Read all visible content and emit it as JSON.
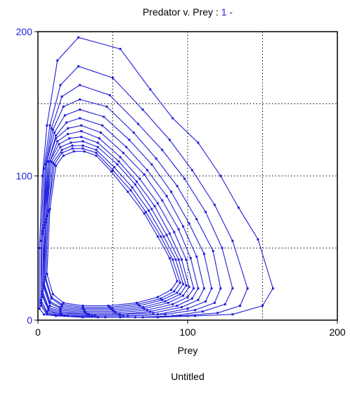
{
  "chart_data": {
    "type": "line",
    "title_prefix": "Predator v. Prey : ",
    "title_run": "1 -",
    "xlabel": "Prey",
    "ylabel": "",
    "footer": "Untitled",
    "xlim": [
      0,
      200
    ],
    "ylim": [
      0,
      200
    ],
    "x_ticks": [
      0,
      100,
      200
    ],
    "y_ticks": [
      0,
      100,
      200
    ],
    "grid_x": [
      50,
      100,
      150
    ],
    "grid_y": [
      50,
      100,
      150
    ],
    "grid": true,
    "legend": "none",
    "colors": {
      "series": "#1f1fdb",
      "y_ticks": "#1f1fdb",
      "title_run": "#1f1fdb",
      "grid": "#000000"
    },
    "series": [
      {
        "points": [
          [
            1,
            8
          ],
          [
            1,
            50
          ],
          [
            3,
            100
          ],
          [
            6,
            135
          ],
          [
            13,
            180
          ],
          [
            27,
            196
          ],
          [
            55,
            188
          ],
          [
            75,
            160
          ],
          [
            90,
            140
          ],
          [
            107,
            123
          ],
          [
            122,
            100
          ],
          [
            134,
            78
          ],
          [
            147,
            56
          ],
          [
            157,
            22
          ],
          [
            150,
            10
          ],
          [
            130,
            4
          ],
          [
            105,
            3
          ],
          [
            80,
            2
          ],
          [
            55,
            2
          ],
          [
            30,
            2
          ],
          [
            12,
            3
          ],
          [
            4,
            4
          ],
          [
            1,
            8
          ]
        ]
      },
      {
        "points": [
          [
            2,
            10
          ],
          [
            2,
            55
          ],
          [
            4,
            105
          ],
          [
            8,
            135
          ],
          [
            15,
            163
          ],
          [
            27,
            176
          ],
          [
            50,
            168
          ],
          [
            70,
            146
          ],
          [
            88,
            125
          ],
          [
            103,
            104
          ],
          [
            118,
            80
          ],
          [
            130,
            55
          ],
          [
            140,
            22
          ],
          [
            135,
            10
          ],
          [
            120,
            5
          ],
          [
            95,
            3
          ],
          [
            70,
            2
          ],
          [
            45,
            2
          ],
          [
            20,
            3
          ],
          [
            6,
            4
          ],
          [
            2,
            10
          ]
        ]
      },
      {
        "points": [
          [
            2,
            12
          ],
          [
            3,
            60
          ],
          [
            5,
            108
          ],
          [
            9,
            133
          ],
          [
            16,
            155
          ],
          [
            28,
            163
          ],
          [
            48,
            156
          ],
          [
            67,
            136
          ],
          [
            83,
            118
          ],
          [
            98,
            98
          ],
          [
            112,
            75
          ],
          [
            123,
            50
          ],
          [
            130,
            22
          ],
          [
            125,
            11
          ],
          [
            110,
            6
          ],
          [
            90,
            3
          ],
          [
            65,
            2
          ],
          [
            40,
            2
          ],
          [
            18,
            3
          ],
          [
            6,
            5
          ],
          [
            2,
            12
          ]
        ]
      },
      {
        "points": [
          [
            2,
            14
          ],
          [
            3,
            62
          ],
          [
            6,
            110
          ],
          [
            10,
            132
          ],
          [
            17,
            148
          ],
          [
            28,
            153
          ],
          [
            46,
            148
          ],
          [
            64,
            130
          ],
          [
            79,
            112
          ],
          [
            93,
            93
          ],
          [
            106,
            70
          ],
          [
            117,
            48
          ],
          [
            122,
            22
          ],
          [
            118,
            12
          ],
          [
            105,
            7
          ],
          [
            85,
            4
          ],
          [
            60,
            3
          ],
          [
            38,
            3
          ],
          [
            16,
            4
          ],
          [
            6,
            6
          ],
          [
            2,
            14
          ]
        ]
      },
      {
        "points": [
          [
            3,
            16
          ],
          [
            4,
            64
          ],
          [
            6,
            110
          ],
          [
            11,
            130
          ],
          [
            18,
            142
          ],
          [
            28,
            146
          ],
          [
            44,
            141
          ],
          [
            61,
            125
          ],
          [
            76,
            108
          ],
          [
            89,
            89
          ],
          [
            101,
            67
          ],
          [
            111,
            46
          ],
          [
            116,
            22
          ],
          [
            112,
            13
          ],
          [
            100,
            8
          ],
          [
            80,
            4
          ],
          [
            57,
            3
          ],
          [
            36,
            3
          ],
          [
            15,
            4
          ],
          [
            7,
            7
          ],
          [
            3,
            16
          ]
        ]
      },
      {
        "points": [
          [
            3,
            18
          ],
          [
            4,
            66
          ],
          [
            7,
            110
          ],
          [
            12,
            128
          ],
          [
            19,
            137
          ],
          [
            28,
            140
          ],
          [
            43,
            135
          ],
          [
            59,
            120
          ],
          [
            73,
            104
          ],
          [
            86,
            86
          ],
          [
            97,
            65
          ],
          [
            106,
            44
          ],
          [
            111,
            22
          ],
          [
            107,
            14
          ],
          [
            96,
            9
          ],
          [
            77,
            5
          ],
          [
            55,
            4
          ],
          [
            34,
            4
          ],
          [
            15,
            5
          ],
          [
            7,
            8
          ],
          [
            3,
            18
          ]
        ]
      },
      {
        "points": [
          [
            3,
            20
          ],
          [
            5,
            68
          ],
          [
            7,
            110
          ],
          [
            12,
            126
          ],
          [
            20,
            133
          ],
          [
            29,
            135
          ],
          [
            42,
            130
          ],
          [
            57,
            116
          ],
          [
            71,
            101
          ],
          [
            83,
            83
          ],
          [
            94,
            63
          ],
          [
            102,
            43
          ],
          [
            107,
            22
          ],
          [
            103,
            15
          ],
          [
            93,
            10
          ],
          [
            75,
            6
          ],
          [
            54,
            4
          ],
          [
            33,
            4
          ],
          [
            15,
            6
          ],
          [
            7,
            9
          ],
          [
            3,
            20
          ]
        ]
      },
      {
        "points": [
          [
            4,
            22
          ],
          [
            5,
            70
          ],
          [
            8,
            110
          ],
          [
            13,
            124
          ],
          [
            20,
            129
          ],
          [
            29,
            131
          ],
          [
            41,
            126
          ],
          [
            55,
            113
          ],
          [
            68,
            98
          ],
          [
            80,
            81
          ],
          [
            91,
            61
          ],
          [
            99,
            42
          ],
          [
            104,
            22
          ],
          [
            100,
            16
          ],
          [
            90,
            11
          ],
          [
            73,
            7
          ],
          [
            52,
            5
          ],
          [
            32,
            5
          ],
          [
            15,
            7
          ],
          [
            8,
            10
          ],
          [
            4,
            22
          ]
        ]
      },
      {
        "points": [
          [
            4,
            24
          ],
          [
            6,
            72
          ],
          [
            8,
            110
          ],
          [
            14,
            122
          ],
          [
            21,
            126
          ],
          [
            29,
            127
          ],
          [
            40,
            123
          ],
          [
            54,
            110
          ],
          [
            66,
            96
          ],
          [
            78,
            79
          ],
          [
            88,
            60
          ],
          [
            96,
            42
          ],
          [
            101,
            23
          ],
          [
            97,
            17
          ],
          [
            87,
            12
          ],
          [
            71,
            8
          ],
          [
            51,
            6
          ],
          [
            31,
            6
          ],
          [
            15,
            8
          ],
          [
            8,
            12
          ],
          [
            4,
            24
          ]
        ]
      },
      {
        "points": [
          [
            4,
            26
          ],
          [
            6,
            73
          ],
          [
            9,
            110
          ],
          [
            15,
            120
          ],
          [
            22,
            123
          ],
          [
            30,
            124
          ],
          [
            40,
            120
          ],
          [
            53,
            108
          ],
          [
            65,
            94
          ],
          [
            76,
            77
          ],
          [
            86,
            59
          ],
          [
            94,
            42
          ],
          [
            99,
            24
          ],
          [
            95,
            18
          ],
          [
            85,
            13
          ],
          [
            70,
            9
          ],
          [
            50,
            7
          ],
          [
            31,
            7
          ],
          [
            15,
            9
          ],
          [
            8,
            13
          ],
          [
            4,
            26
          ]
        ]
      },
      {
        "points": [
          [
            5,
            28
          ],
          [
            7,
            75
          ],
          [
            10,
            109
          ],
          [
            16,
            118
          ],
          [
            23,
            121
          ],
          [
            30,
            121
          ],
          [
            39,
            118
          ],
          [
            51,
            106
          ],
          [
            63,
            92
          ],
          [
            74,
            76
          ],
          [
            84,
            58
          ],
          [
            92,
            42
          ],
          [
            97,
            25
          ],
          [
            93,
            19
          ],
          [
            83,
            14
          ],
          [
            68,
            10
          ],
          [
            49,
            8
          ],
          [
            30,
            8
          ],
          [
            16,
            10
          ],
          [
            9,
            15
          ],
          [
            5,
            28
          ]
        ]
      },
      {
        "points": [
          [
            5,
            30
          ],
          [
            7,
            76
          ],
          [
            11,
            108
          ],
          [
            16,
            116
          ],
          [
            23,
            119
          ],
          [
            30,
            119
          ],
          [
            39,
            116
          ],
          [
            50,
            104
          ],
          [
            62,
            90
          ],
          [
            72,
            75
          ],
          [
            82,
            58
          ],
          [
            90,
            42
          ],
          [
            95,
            26
          ],
          [
            91,
            20
          ],
          [
            82,
            15
          ],
          [
            67,
            11
          ],
          [
            48,
            9
          ],
          [
            30,
            9
          ],
          [
            16,
            11
          ],
          [
            9,
            16
          ],
          [
            5,
            30
          ]
        ]
      },
      {
        "points": [
          [
            6,
            32
          ],
          [
            8,
            77
          ],
          [
            12,
            107
          ],
          [
            17,
            114
          ],
          [
            24,
            117
          ],
          [
            31,
            117
          ],
          [
            39,
            114
          ],
          [
            49,
            103
          ],
          [
            60,
            89
          ],
          [
            71,
            74
          ],
          [
            80,
            58
          ],
          [
            88,
            43
          ],
          [
            93,
            27
          ],
          [
            89,
            21
          ],
          [
            80,
            16
          ],
          [
            66,
            12
          ],
          [
            47,
            10
          ],
          [
            30,
            10
          ],
          [
            17,
            12
          ],
          [
            10,
            18
          ],
          [
            6,
            32
          ]
        ]
      }
    ]
  }
}
